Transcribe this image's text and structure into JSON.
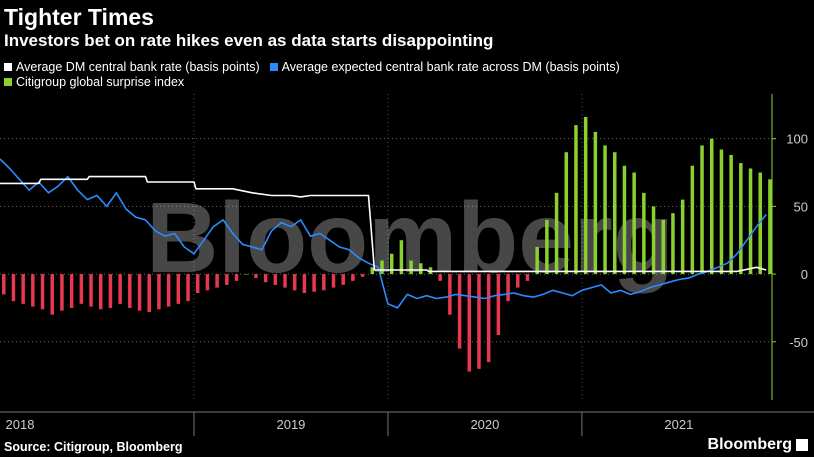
{
  "header": {
    "title": "Tighter Times",
    "subtitle": "Investors bet on rate hikes even as data starts disappointing"
  },
  "legend": [
    {
      "label": "Average DM central bank rate (basis points)",
      "color": "#ffffff"
    },
    {
      "label": "Average expected central bank rate across DM (basis points)",
      "color": "#2a8cff"
    },
    {
      "label": "Citigroup global surprise index",
      "color": "#8bd12e"
    }
  ],
  "footer": {
    "source": "Source: Citigroup, Bloomberg",
    "brand": "Bloomberg"
  },
  "watermark": "Bloomberg",
  "chart_data": {
    "type": "bar+line",
    "title": "Tighter Times",
    "ylim": [
      -93,
      133
    ],
    "yticks": [
      100,
      50,
      0,
      -50
    ],
    "x_labels": [
      "2018",
      "2019",
      "2020",
      "2021"
    ],
    "x_range_years": [
      2018.0,
      2021.98
    ],
    "series": [
      {
        "name": "Citigroup global surprise index",
        "type": "bar",
        "positive_color": "#8bd12e",
        "negative_color": "#e8384f",
        "x": [
          2018.0,
          2018.05,
          2018.1,
          2018.15,
          2018.2,
          2018.25,
          2018.3,
          2018.35,
          2018.4,
          2018.45,
          2018.5,
          2018.55,
          2018.6,
          2018.65,
          2018.7,
          2018.75,
          2018.8,
          2018.85,
          2018.9,
          2018.95,
          2019.0,
          2019.05,
          2019.1,
          2019.15,
          2019.2,
          2019.25,
          2019.3,
          2019.35,
          2019.4,
          2019.45,
          2019.5,
          2019.55,
          2019.6,
          2019.65,
          2019.7,
          2019.75,
          2019.8,
          2019.85,
          2019.9,
          2019.95,
          2020.0,
          2020.05,
          2020.1,
          2020.15,
          2020.2,
          2020.25,
          2020.3,
          2020.35,
          2020.4,
          2020.45,
          2020.5,
          2020.55,
          2020.6,
          2020.65,
          2020.7,
          2020.75,
          2020.8,
          2020.85,
          2020.9,
          2020.95,
          2021.0,
          2021.05,
          2021.1,
          2021.15,
          2021.2,
          2021.25,
          2021.3,
          2021.35,
          2021.4,
          2021.45,
          2021.5,
          2021.55,
          2021.6,
          2021.65,
          2021.7,
          2021.75,
          2021.8,
          2021.85,
          2021.9,
          2021.95
        ],
        "values": [
          -15,
          -20,
          -22,
          -24,
          -26,
          -30,
          -27,
          -25,
          -22,
          -24,
          -26,
          -25,
          -22,
          -25,
          -27,
          -28,
          -26,
          -24,
          -22,
          -20,
          -14,
          -12,
          -10,
          -8,
          -5,
          0,
          -3,
          -6,
          -8,
          -10,
          -12,
          -14,
          -13,
          -12,
          -10,
          -8,
          -5,
          -2,
          5,
          10,
          15,
          25,
          10,
          8,
          5,
          -5,
          -30,
          -55,
          -72,
          -70,
          -65,
          -45,
          -20,
          -10,
          -5,
          20,
          40,
          60,
          90,
          110,
          116,
          105,
          95,
          90,
          80,
          75,
          60,
          50,
          40,
          45,
          55,
          80,
          95,
          100,
          92,
          88,
          82,
          78,
          75,
          70
        ]
      },
      {
        "name": "Average DM central bank rate (basis points)",
        "type": "line",
        "color": "#ffffff",
        "x": [
          2018.0,
          2018.2,
          2018.21,
          2018.45,
          2018.46,
          2018.75,
          2018.76,
          2019.0,
          2019.01,
          2019.2,
          2019.3,
          2019.4,
          2019.5,
          2019.55,
          2019.6,
          2019.7,
          2019.8,
          2019.9,
          2019.93,
          2020.0,
          2020.2,
          2020.21,
          2020.4,
          2020.7,
          2021.0,
          2021.3,
          2021.6,
          2021.8,
          2021.9,
          2021.95
        ],
        "values": [
          67,
          67,
          70,
          70,
          72,
          72,
          68,
          68,
          63,
          63,
          60,
          58,
          58,
          57,
          58,
          58,
          58,
          58,
          3,
          3,
          3,
          2,
          2,
          2,
          2,
          2,
          2,
          2,
          5,
          3
        ]
      },
      {
        "name": "Average expected central bank rate across DM (basis points)",
        "type": "line",
        "color": "#2a8cff",
        "x": [
          2018.0,
          2018.05,
          2018.1,
          2018.15,
          2018.2,
          2018.25,
          2018.3,
          2018.35,
          2018.4,
          2018.45,
          2018.5,
          2018.55,
          2018.6,
          2018.65,
          2018.7,
          2018.75,
          2018.8,
          2018.85,
          2018.9,
          2018.95,
          2019.0,
          2019.05,
          2019.1,
          2019.15,
          2019.2,
          2019.25,
          2019.3,
          2019.35,
          2019.4,
          2019.45,
          2019.5,
          2019.55,
          2019.6,
          2019.65,
          2019.7,
          2019.75,
          2019.8,
          2019.85,
          2019.9,
          2019.95,
          2020.0,
          2020.05,
          2020.1,
          2020.15,
          2020.2,
          2020.25,
          2020.3,
          2020.35,
          2020.4,
          2020.45,
          2020.5,
          2020.55,
          2020.6,
          2020.65,
          2020.7,
          2020.75,
          2020.8,
          2020.85,
          2020.9,
          2020.95,
          2021.0,
          2021.05,
          2021.1,
          2021.15,
          2021.2,
          2021.25,
          2021.3,
          2021.35,
          2021.4,
          2021.45,
          2021.5,
          2021.55,
          2021.6,
          2021.65,
          2021.7,
          2021.75,
          2021.8,
          2021.85,
          2021.9,
          2021.95
        ],
        "values": [
          85,
          78,
          70,
          62,
          68,
          60,
          65,
          72,
          62,
          55,
          58,
          50,
          60,
          48,
          42,
          40,
          32,
          28,
          30,
          20,
          15,
          25,
          35,
          40,
          30,
          22,
          20,
          18,
          32,
          38,
          35,
          40,
          28,
          30,
          25,
          20,
          18,
          12,
          8,
          5,
          -22,
          -25,
          -15,
          -18,
          -16,
          -18,
          -17,
          -15,
          -16,
          -17,
          -18,
          -16,
          -15,
          -14,
          -16,
          -17,
          -15,
          -12,
          -14,
          -16,
          -12,
          -10,
          -8,
          -14,
          -12,
          -15,
          -13,
          -10,
          -8,
          -6,
          -4,
          -3,
          0,
          2,
          5,
          8,
          15,
          25,
          35,
          44
        ]
      }
    ]
  }
}
